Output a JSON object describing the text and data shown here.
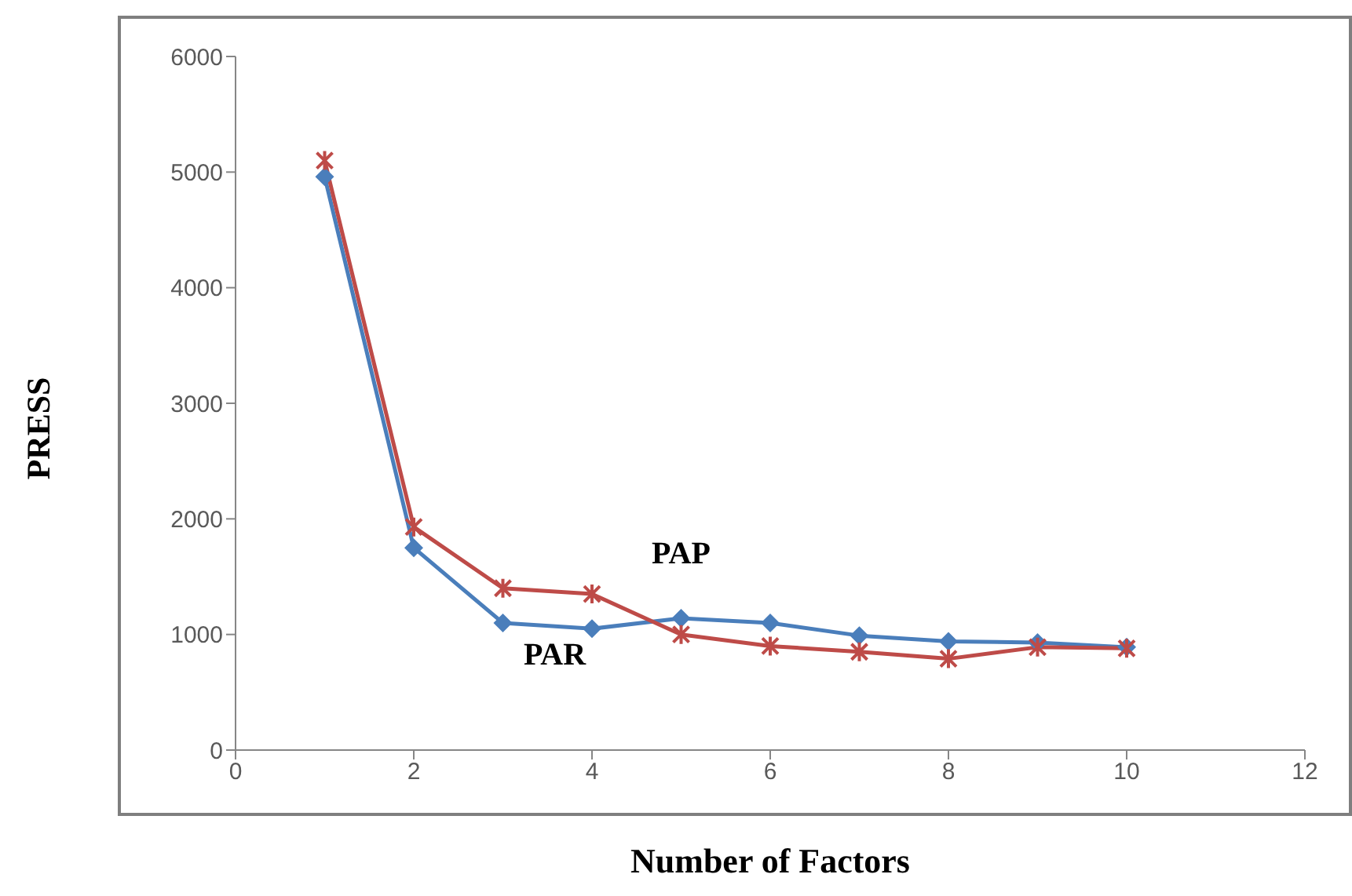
{
  "chart_data": {
    "type": "line",
    "xlabel": "Number of Factors",
    "ylabel": "PRESS",
    "x": [
      1,
      2,
      3,
      4,
      5,
      6,
      7,
      8,
      9,
      10
    ],
    "series": [
      {
        "name": "PAR",
        "color": "#4a7ebb",
        "marker": "diamond",
        "values": [
          4960,
          1750,
          1100,
          1050,
          1140,
          1100,
          990,
          940,
          930,
          890
        ]
      },
      {
        "name": "PAP",
        "color": "#be4b48",
        "marker": "cross",
        "values": [
          5100,
          1930,
          1400,
          1350,
          1000,
          900,
          850,
          790,
          890,
          880
        ]
      }
    ],
    "xlim": [
      0,
      12
    ],
    "xticks": [
      0,
      2,
      4,
      6,
      8,
      10,
      12
    ],
    "ylim": [
      0,
      6000
    ],
    "yticks": [
      0,
      1000,
      2000,
      3000,
      4000,
      5000,
      6000
    ],
    "grid": false,
    "legend": false
  }
}
